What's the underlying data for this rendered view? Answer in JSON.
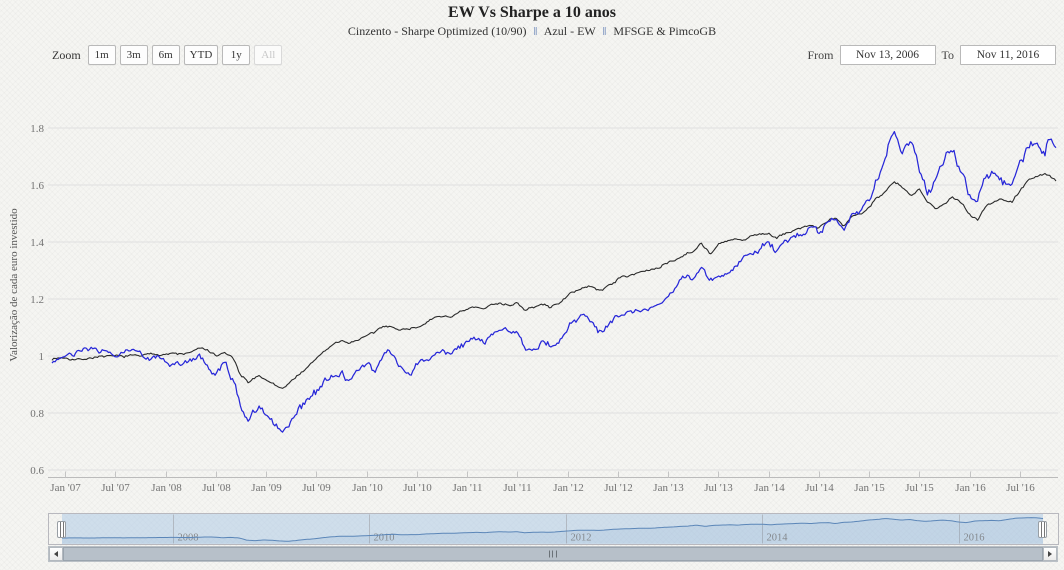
{
  "header": {
    "title": "EW Vs Sharpe a 10 anos",
    "subtitle_parts": [
      "Cinzento - Sharpe Optimized (10/90)",
      "Azul - EW",
      "MFSGE & PimcoGB"
    ],
    "subtitle_separator": "‖"
  },
  "range_selector": {
    "zoom_label": "Zoom",
    "buttons": [
      {
        "label": "1m",
        "enabled": true
      },
      {
        "label": "3m",
        "enabled": true
      },
      {
        "label": "6m",
        "enabled": true
      },
      {
        "label": "YTD",
        "enabled": true
      },
      {
        "label": "1y",
        "enabled": true
      },
      {
        "label": "All",
        "enabled": false
      }
    ],
    "from_label": "From",
    "from_value": "Nov 13, 2006",
    "to_label": "To",
    "to_value": "Nov 11, 2016"
  },
  "chart_data": {
    "type": "line",
    "title": "EW Vs Sharpe a 10 anos",
    "subtitle": "Cinzento - Sharpe Optimized (10/90) ‖ Azul - EW ‖ MFSGE & PimcoGB",
    "xlabel": "",
    "ylabel": "Valorização de cada euro investido",
    "x_range_decimal_years": [
      2006.87,
      2016.86
    ],
    "ylim": [
      0.56,
      1.93
    ],
    "grid": true,
    "legend_position": "none",
    "y_ticks": [
      {
        "v": 0.6,
        "label": "0.6"
      },
      {
        "v": 0.8,
        "label": "0.8"
      },
      {
        "v": 1.0,
        "label": "1"
      },
      {
        "v": 1.2,
        "label": "1.2"
      },
      {
        "v": 1.4,
        "label": "1.4"
      },
      {
        "v": 1.6,
        "label": "1.6"
      },
      {
        "v": 1.8,
        "label": "1.8"
      }
    ],
    "x_ticks": [
      {
        "t": 2007.0,
        "label": "Jan '07"
      },
      {
        "t": 2007.5,
        "label": "Jul '07"
      },
      {
        "t": 2008.0,
        "label": "Jan '08"
      },
      {
        "t": 2008.5,
        "label": "Jul '08"
      },
      {
        "t": 2009.0,
        "label": "Jan '09"
      },
      {
        "t": 2009.5,
        "label": "Jul '09"
      },
      {
        "t": 2010.0,
        "label": "Jan '10"
      },
      {
        "t": 2010.5,
        "label": "Jul '10"
      },
      {
        "t": 2011.0,
        "label": "Jan '11"
      },
      {
        "t": 2011.5,
        "label": "Jul '11"
      },
      {
        "t": 2012.0,
        "label": "Jan '12"
      },
      {
        "t": 2012.5,
        "label": "Jul '12"
      },
      {
        "t": 2013.0,
        "label": "Jan '13"
      },
      {
        "t": 2013.5,
        "label": "Jul '13"
      },
      {
        "t": 2014.0,
        "label": "Jan '14"
      },
      {
        "t": 2014.5,
        "label": "Jul '14"
      },
      {
        "t": 2015.0,
        "label": "Jan '15"
      },
      {
        "t": 2015.5,
        "label": "Jul '15"
      },
      {
        "t": 2016.0,
        "label": "Jan '16"
      },
      {
        "t": 2016.5,
        "label": "Jul '16"
      }
    ],
    "navigator_ticks": [
      {
        "t": 2008,
        "label": "2008"
      },
      {
        "t": 2010,
        "label": "2010"
      },
      {
        "t": 2012,
        "label": "2012"
      },
      {
        "t": 2014,
        "label": "2014"
      },
      {
        "t": 2016,
        "label": "2016"
      }
    ],
    "series": [
      {
        "name": "Sharpe Optimized (10/90)",
        "color": "#2b2b2b",
        "jitter": 0.0035,
        "anchors": [
          [
            2006.87,
            0.99
          ],
          [
            2007.0,
            0.995
          ],
          [
            2007.17,
            0.99
          ],
          [
            2007.33,
            1.0
          ],
          [
            2007.5,
            0.995
          ],
          [
            2007.67,
            1.0
          ],
          [
            2007.83,
            1.005
          ],
          [
            2008.0,
            1.01
          ],
          [
            2008.17,
            1.005
          ],
          [
            2008.33,
            1.025
          ],
          [
            2008.42,
            1.02
          ],
          [
            2008.5,
            1.0
          ],
          [
            2008.58,
            1.01
          ],
          [
            2008.67,
            0.995
          ],
          [
            2008.75,
            0.925
          ],
          [
            2008.83,
            0.905
          ],
          [
            2008.92,
            0.93
          ],
          [
            2009.0,
            0.92
          ],
          [
            2009.08,
            0.9
          ],
          [
            2009.17,
            0.885
          ],
          [
            2009.25,
            0.91
          ],
          [
            2009.33,
            0.94
          ],
          [
            2009.42,
            0.96
          ],
          [
            2009.5,
            0.99
          ],
          [
            2009.58,
            1.02
          ],
          [
            2009.67,
            1.04
          ],
          [
            2009.75,
            1.05
          ],
          [
            2009.83,
            1.045
          ],
          [
            2009.92,
            1.06
          ],
          [
            2010.0,
            1.07
          ],
          [
            2010.08,
            1.08
          ],
          [
            2010.17,
            1.1
          ],
          [
            2010.25,
            1.11
          ],
          [
            2010.33,
            1.09
          ],
          [
            2010.42,
            1.1
          ],
          [
            2010.5,
            1.1
          ],
          [
            2010.58,
            1.12
          ],
          [
            2010.67,
            1.13
          ],
          [
            2010.75,
            1.14
          ],
          [
            2010.83,
            1.14
          ],
          [
            2010.92,
            1.15
          ],
          [
            2011.0,
            1.16
          ],
          [
            2011.08,
            1.17
          ],
          [
            2011.17,
            1.16
          ],
          [
            2011.25,
            1.18
          ],
          [
            2011.33,
            1.19
          ],
          [
            2011.42,
            1.18
          ],
          [
            2011.5,
            1.19
          ],
          [
            2011.58,
            1.16
          ],
          [
            2011.67,
            1.17
          ],
          [
            2011.75,
            1.18
          ],
          [
            2011.83,
            1.17
          ],
          [
            2011.92,
            1.19
          ],
          [
            2012.0,
            1.21
          ],
          [
            2012.08,
            1.23
          ],
          [
            2012.17,
            1.24
          ],
          [
            2012.25,
            1.24
          ],
          [
            2012.33,
            1.23
          ],
          [
            2012.42,
            1.25
          ],
          [
            2012.5,
            1.27
          ],
          [
            2012.58,
            1.28
          ],
          [
            2012.67,
            1.29
          ],
          [
            2012.75,
            1.3
          ],
          [
            2012.83,
            1.3
          ],
          [
            2012.92,
            1.31
          ],
          [
            2013.0,
            1.33
          ],
          [
            2013.08,
            1.34
          ],
          [
            2013.17,
            1.36
          ],
          [
            2013.25,
            1.37
          ],
          [
            2013.33,
            1.4
          ],
          [
            2013.42,
            1.36
          ],
          [
            2013.5,
            1.39
          ],
          [
            2013.58,
            1.4
          ],
          [
            2013.67,
            1.41
          ],
          [
            2013.75,
            1.4
          ],
          [
            2013.83,
            1.42
          ],
          [
            2013.92,
            1.43
          ],
          [
            2014.0,
            1.43
          ],
          [
            2014.08,
            1.41
          ],
          [
            2014.17,
            1.43
          ],
          [
            2014.25,
            1.44
          ],
          [
            2014.33,
            1.45
          ],
          [
            2014.42,
            1.46
          ],
          [
            2014.5,
            1.45
          ],
          [
            2014.58,
            1.47
          ],
          [
            2014.67,
            1.48
          ],
          [
            2014.75,
            1.45
          ],
          [
            2014.83,
            1.49
          ],
          [
            2014.92,
            1.5
          ],
          [
            2015.0,
            1.53
          ],
          [
            2015.08,
            1.56
          ],
          [
            2015.17,
            1.58
          ],
          [
            2015.25,
            1.61
          ],
          [
            2015.33,
            1.59
          ],
          [
            2015.42,
            1.56
          ],
          [
            2015.5,
            1.58
          ],
          [
            2015.58,
            1.54
          ],
          [
            2015.67,
            1.52
          ],
          [
            2015.75,
            1.54
          ],
          [
            2015.83,
            1.56
          ],
          [
            2015.92,
            1.54
          ],
          [
            2016.0,
            1.5
          ],
          [
            2016.08,
            1.48
          ],
          [
            2016.17,
            1.53
          ],
          [
            2016.25,
            1.54
          ],
          [
            2016.33,
            1.55
          ],
          [
            2016.42,
            1.54
          ],
          [
            2016.5,
            1.58
          ],
          [
            2016.58,
            1.62
          ],
          [
            2016.67,
            1.63
          ],
          [
            2016.75,
            1.64
          ],
          [
            2016.8,
            1.63
          ],
          [
            2016.86,
            1.61
          ]
        ]
      },
      {
        "name": "EW",
        "color": "#2727d8",
        "jitter": 0.008,
        "anchors": [
          [
            2006.87,
            0.985
          ],
          [
            2007.0,
            0.995
          ],
          [
            2007.08,
            1.0
          ],
          [
            2007.17,
            1.01
          ],
          [
            2007.25,
            1.02
          ],
          [
            2007.33,
            1.015
          ],
          [
            2007.42,
            1.02
          ],
          [
            2007.5,
            1.0
          ],
          [
            2007.58,
            1.01
          ],
          [
            2007.67,
            1.015
          ],
          [
            2007.75,
            1.02
          ],
          [
            2007.83,
            1.0
          ],
          [
            2007.92,
            1.01
          ],
          [
            2008.0,
            0.98
          ],
          [
            2008.08,
            0.965
          ],
          [
            2008.17,
            0.97
          ],
          [
            2008.25,
            0.99
          ],
          [
            2008.33,
            1.0
          ],
          [
            2008.42,
            0.965
          ],
          [
            2008.5,
            0.93
          ],
          [
            2008.58,
            0.955
          ],
          [
            2008.67,
            0.92
          ],
          [
            2008.75,
            0.8
          ],
          [
            2008.83,
            0.78
          ],
          [
            2008.92,
            0.83
          ],
          [
            2009.0,
            0.81
          ],
          [
            2009.08,
            0.77
          ],
          [
            2009.17,
            0.735
          ],
          [
            2009.25,
            0.79
          ],
          [
            2009.33,
            0.84
          ],
          [
            2009.42,
            0.85
          ],
          [
            2009.5,
            0.87
          ],
          [
            2009.58,
            0.91
          ],
          [
            2009.67,
            0.93
          ],
          [
            2009.75,
            0.94
          ],
          [
            2009.83,
            0.925
          ],
          [
            2009.92,
            0.95
          ],
          [
            2010.0,
            0.96
          ],
          [
            2010.08,
            0.94
          ],
          [
            2010.17,
            0.99
          ],
          [
            2010.25,
            1.01
          ],
          [
            2010.33,
            0.96
          ],
          [
            2010.42,
            0.95
          ],
          [
            2010.5,
            0.97
          ],
          [
            2010.58,
            0.97
          ],
          [
            2010.67,
            1.0
          ],
          [
            2010.75,
            1.02
          ],
          [
            2010.83,
            1.01
          ],
          [
            2010.92,
            1.04
          ],
          [
            2011.0,
            1.05
          ],
          [
            2011.08,
            1.07
          ],
          [
            2011.17,
            1.05
          ],
          [
            2011.25,
            1.08
          ],
          [
            2011.33,
            1.1
          ],
          [
            2011.42,
            1.08
          ],
          [
            2011.5,
            1.09
          ],
          [
            2011.58,
            1.03
          ],
          [
            2011.67,
            1.02
          ],
          [
            2011.75,
            1.05
          ],
          [
            2011.83,
            1.04
          ],
          [
            2011.92,
            1.06
          ],
          [
            2012.0,
            1.1
          ],
          [
            2012.08,
            1.13
          ],
          [
            2012.17,
            1.14
          ],
          [
            2012.25,
            1.12
          ],
          [
            2012.33,
            1.08
          ],
          [
            2012.42,
            1.1
          ],
          [
            2012.5,
            1.13
          ],
          [
            2012.58,
            1.15
          ],
          [
            2012.67,
            1.17
          ],
          [
            2012.75,
            1.16
          ],
          [
            2012.83,
            1.17
          ],
          [
            2012.92,
            1.19
          ],
          [
            2013.0,
            1.22
          ],
          [
            2013.08,
            1.24
          ],
          [
            2013.17,
            1.26
          ],
          [
            2013.25,
            1.27
          ],
          [
            2013.33,
            1.31
          ],
          [
            2013.42,
            1.25
          ],
          [
            2013.5,
            1.28
          ],
          [
            2013.58,
            1.29
          ],
          [
            2013.67,
            1.32
          ],
          [
            2013.75,
            1.35
          ],
          [
            2013.83,
            1.37
          ],
          [
            2013.92,
            1.38
          ],
          [
            2014.0,
            1.4
          ],
          [
            2014.08,
            1.37
          ],
          [
            2014.17,
            1.41
          ],
          [
            2014.25,
            1.42
          ],
          [
            2014.33,
            1.43
          ],
          [
            2014.42,
            1.45
          ],
          [
            2014.5,
            1.43
          ],
          [
            2014.58,
            1.46
          ],
          [
            2014.67,
            1.47
          ],
          [
            2014.75,
            1.43
          ],
          [
            2014.83,
            1.49
          ],
          [
            2014.92,
            1.5
          ],
          [
            2015.0,
            1.55
          ],
          [
            2015.08,
            1.63
          ],
          [
            2015.17,
            1.71
          ],
          [
            2015.25,
            1.805
          ],
          [
            2015.33,
            1.73
          ],
          [
            2015.42,
            1.76
          ],
          [
            2015.5,
            1.66
          ],
          [
            2015.58,
            1.58
          ],
          [
            2015.67,
            1.62
          ],
          [
            2015.75,
            1.68
          ],
          [
            2015.83,
            1.72
          ],
          [
            2015.92,
            1.64
          ],
          [
            2016.0,
            1.56
          ],
          [
            2016.08,
            1.54
          ],
          [
            2016.17,
            1.63
          ],
          [
            2016.25,
            1.65
          ],
          [
            2016.33,
            1.63
          ],
          [
            2016.42,
            1.6
          ],
          [
            2016.5,
            1.68
          ],
          [
            2016.58,
            1.74
          ],
          [
            2016.67,
            1.76
          ],
          [
            2016.75,
            1.73
          ],
          [
            2016.8,
            1.77
          ],
          [
            2016.86,
            1.75
          ]
        ]
      }
    ],
    "navigator": {
      "series_shown": "Sharpe Optimized (10/90)",
      "line_color": "#5b86b8",
      "mask_color": "#aecbe6"
    }
  },
  "colors": {
    "gridline": "#e0e0e0",
    "axis_line": "#bbbbbb",
    "tick_label": "#737373",
    "nav_label": "#8a8a8a",
    "accent_blue": "#2727d8",
    "accent_black": "#2b2b2b"
  }
}
